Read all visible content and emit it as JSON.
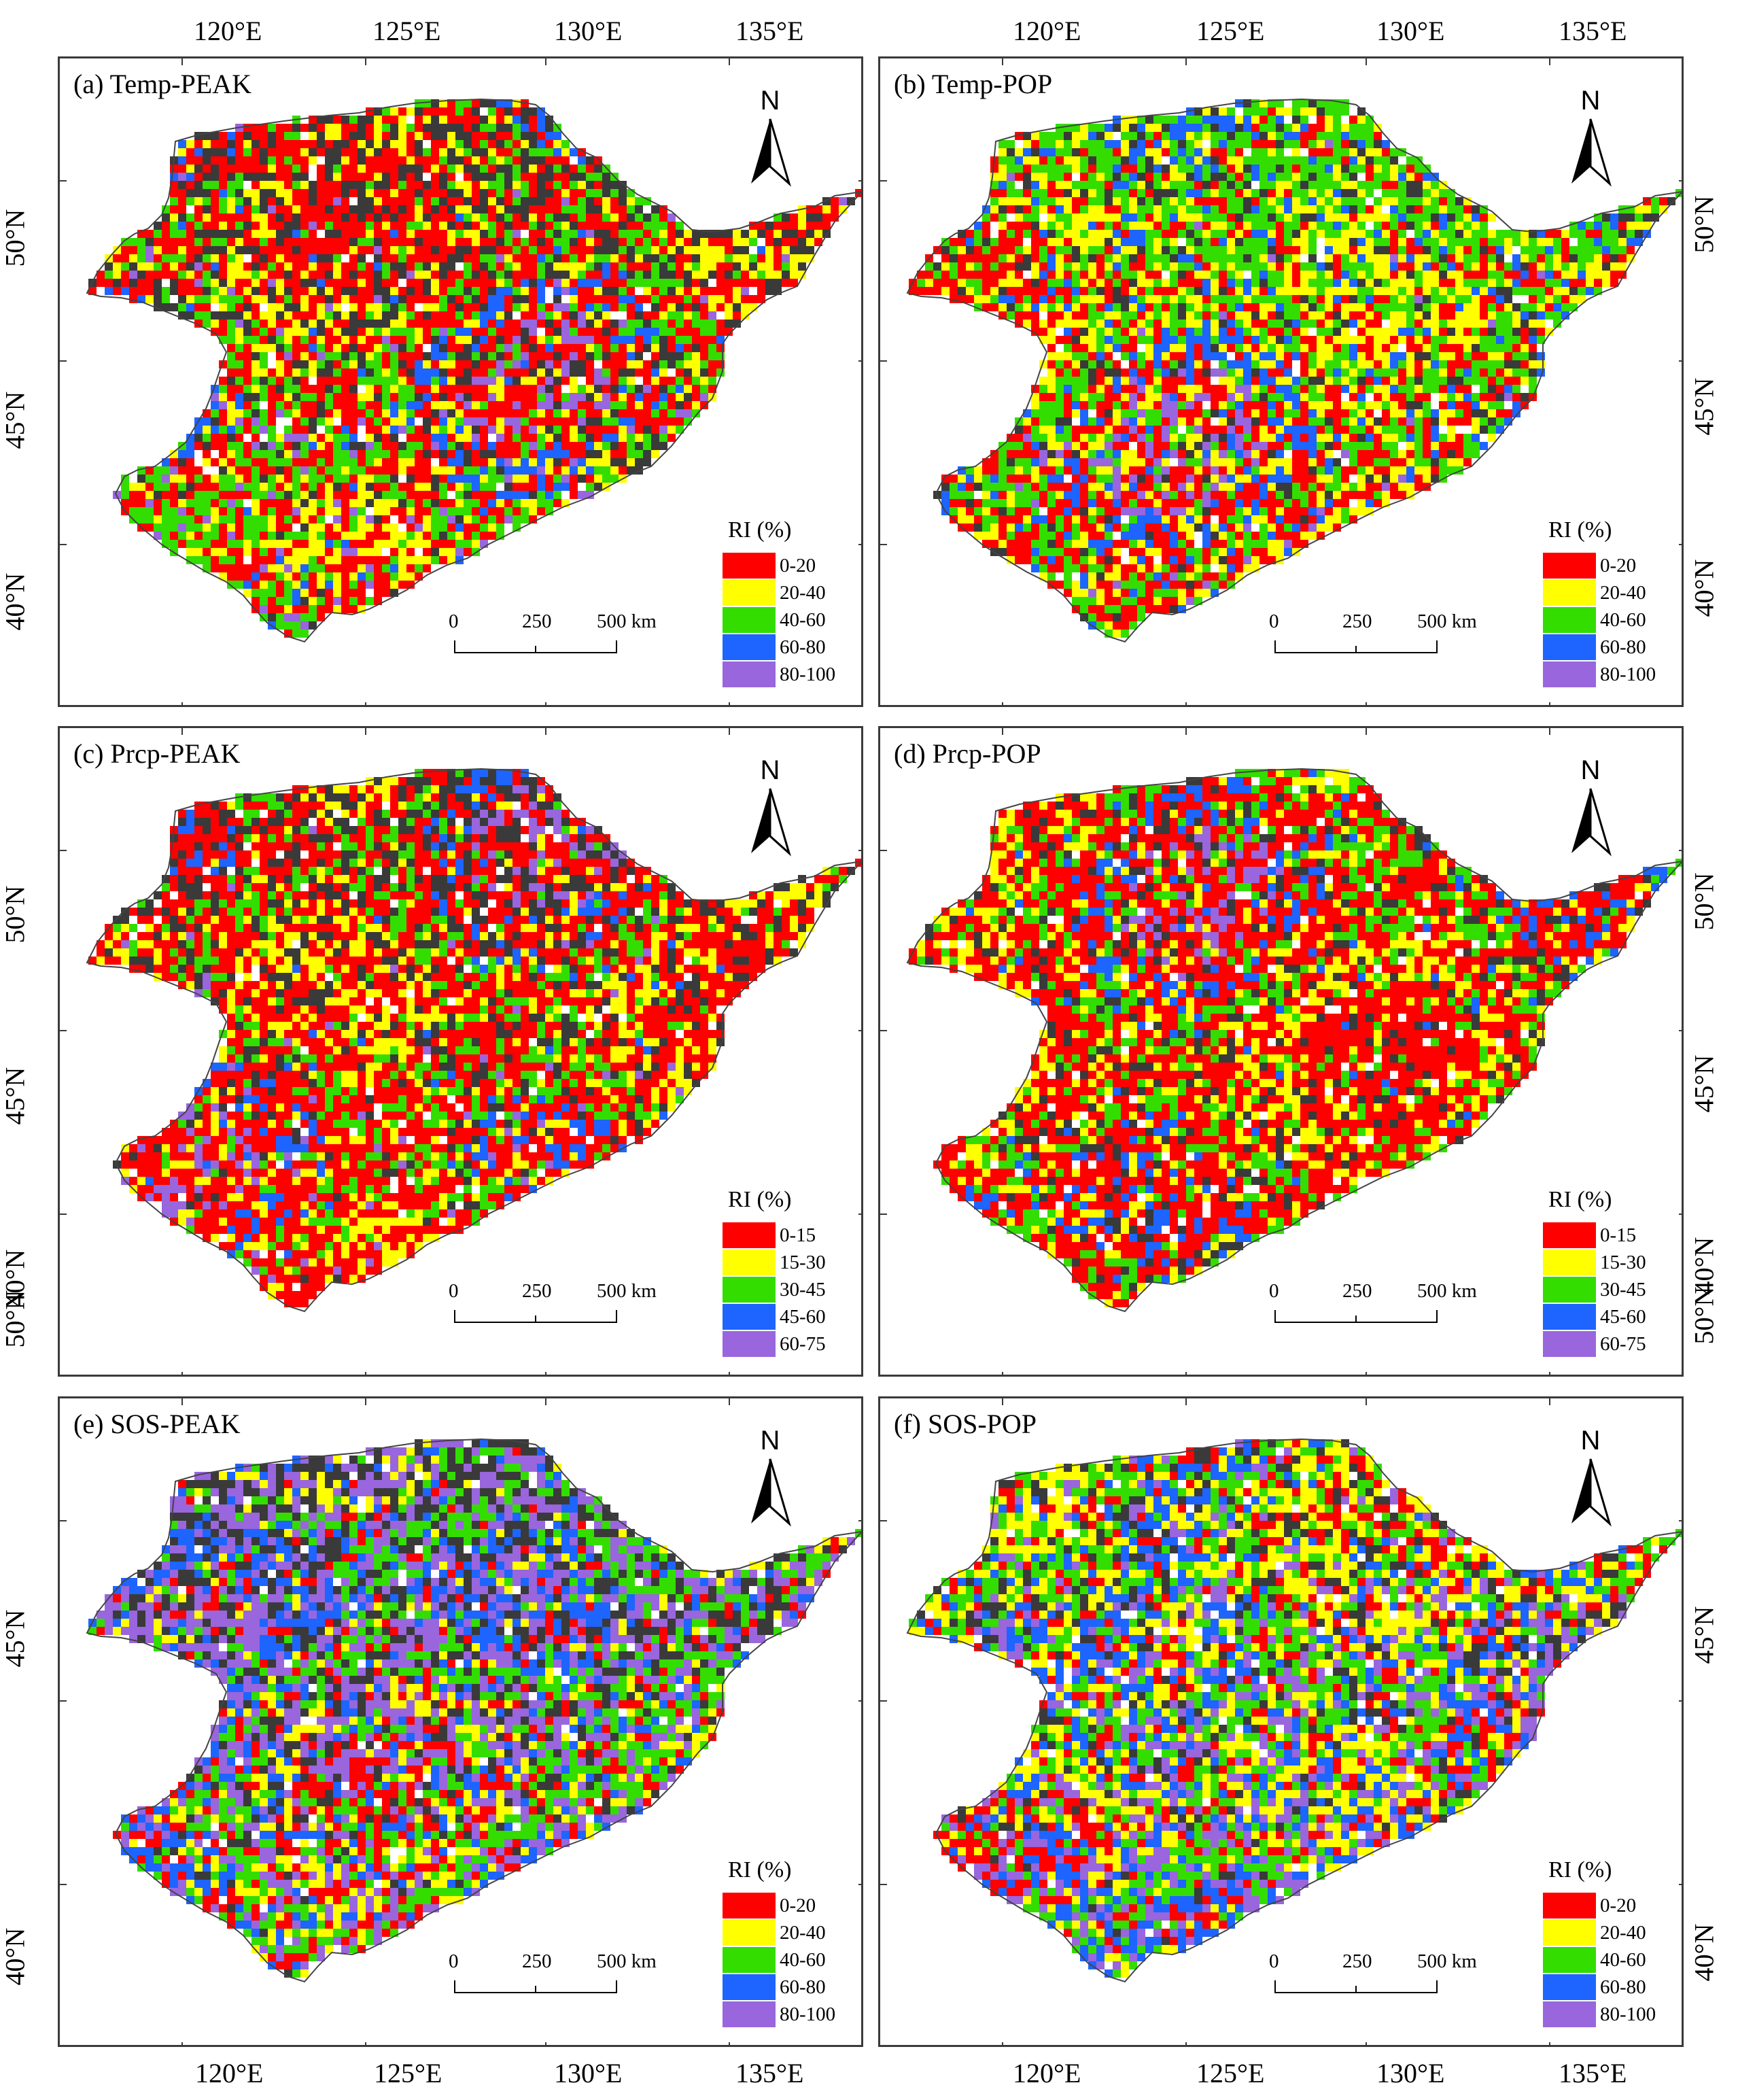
{
  "axes": {
    "lon_labels": [
      "120°E",
      "125°E",
      "130°E",
      "135°E"
    ],
    "lat_labels": [
      "50°N",
      "45°N",
      "40°N"
    ]
  },
  "colors": {
    "no_data": "#3a3a3a",
    "class_1": "#ff0000",
    "class_2": "#ffff00",
    "class_3": "#33dd00",
    "class_4": "#1e64ff",
    "class_5": "#9966dd"
  },
  "panels": [
    {
      "id": "a",
      "title": "(a)  Temp-PEAK",
      "north": "N",
      "legend_title": "RI (%)",
      "legend_items": [
        "0-20",
        "20-40",
        "40-60",
        "60-80",
        "80-100"
      ],
      "scale_labels": [
        "0",
        "250",
        "500 km"
      ]
    },
    {
      "id": "b",
      "title": "(b)  Temp-POP",
      "north": "N",
      "legend_title": "RI (%)",
      "legend_items": [
        "0-20",
        "20-40",
        "40-60",
        "60-80",
        "80-100"
      ],
      "scale_labels": [
        "0",
        "250",
        "500 km"
      ]
    },
    {
      "id": "c",
      "title": "(c)  Prcp-PEAK",
      "north": "N",
      "legend_title": "RI (%)",
      "legend_items": [
        "0-15",
        "15-30",
        "30-45",
        "45-60",
        "60-75"
      ],
      "scale_labels": [
        "0",
        "250",
        "500 km"
      ]
    },
    {
      "id": "d",
      "title": "(d)  Prcp-POP",
      "north": "N",
      "legend_title": "RI (%)",
      "legend_items": [
        "0-15",
        "15-30",
        "30-45",
        "45-60",
        "60-75"
      ],
      "scale_labels": [
        "0",
        "250",
        "500 km"
      ]
    },
    {
      "id": "e",
      "title": "(e)  SOS-PEAK",
      "north": "N",
      "legend_title": "RI (%)",
      "legend_items": [
        "0-20",
        "20-40",
        "40-60",
        "60-80",
        "80-100"
      ],
      "scale_labels": [
        "0",
        "250",
        "500 km"
      ]
    },
    {
      "id": "f",
      "title": "(f)  SOS-POP",
      "north": "N",
      "legend_title": "RI (%)",
      "legend_items": [
        "0-20",
        "20-40",
        "40-60",
        "60-80",
        "80-100"
      ],
      "scale_labels": [
        "0",
        "250",
        "500 km"
      ]
    }
  ]
}
